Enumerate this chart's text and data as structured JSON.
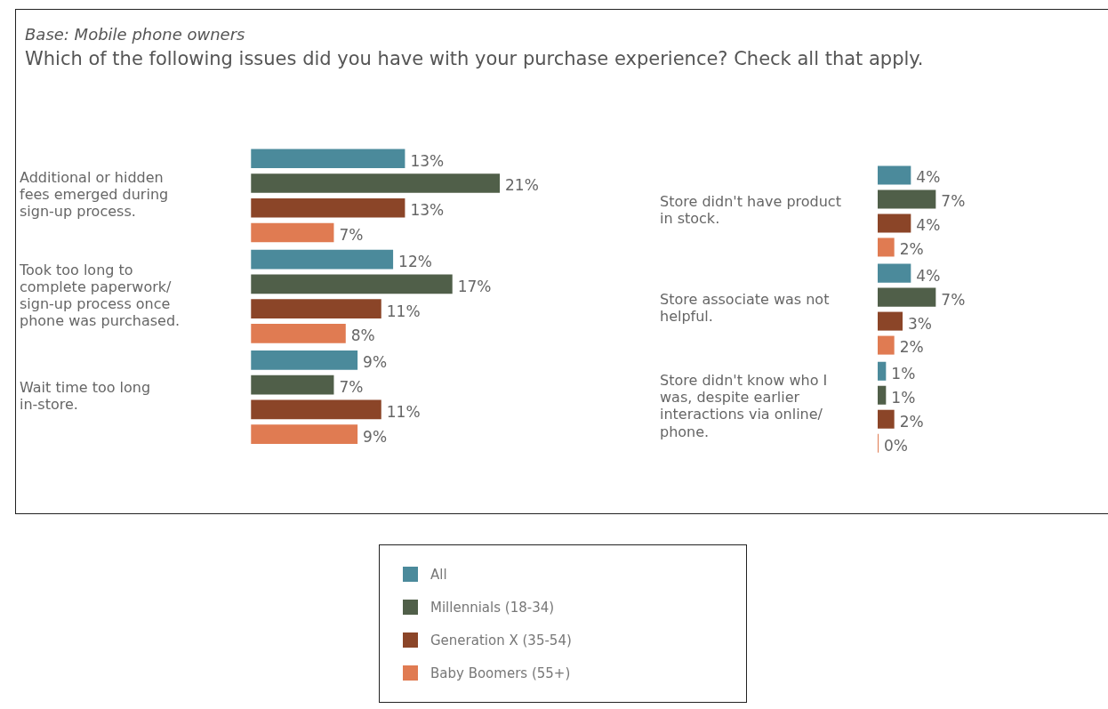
{
  "chart_data": [
    {
      "type": "bar",
      "orientation": "horizontal",
      "subtitle": "Base: Mobile phone owners",
      "title": "Which of the following issues did you have with your purchase experience? Check all that apply.",
      "categories": [
        "Additional or hidden fees emerged during sign-up process.",
        "Took too long to complete paperwork/ sign-up process once phone was purchased.",
        "Wait time too long in-store."
      ],
      "legend": "bottom",
      "tick_labels": "y",
      "grid": false,
      "series": [
        {
          "name": "All",
          "color": "#4b8a9b",
          "values": [
            13,
            12,
            9
          ],
          "value_labels": [
            "13%",
            "12%",
            "9%"
          ]
        },
        {
          "name": "Millennials (18-34)",
          "color": "#505f49",
          "values": [
            21,
            17,
            7
          ],
          "value_labels": [
            "21%",
            "17%",
            "7%"
          ]
        },
        {
          "name": "Generation X (35-54)",
          "color": "#8b4528",
          "values": [
            13,
            11,
            11
          ],
          "value_labels": [
            "13%",
            "11%",
            "11%"
          ]
        },
        {
          "name": "Baby Boomers (55+)",
          "color": "#e07b52",
          "values": [
            7,
            8,
            9
          ],
          "value_labels": [
            "7%",
            "8%",
            "9%"
          ]
        }
      ]
    },
    {
      "type": "bar",
      "orientation": "horizontal",
      "categories": [
        "Store didn't have product in stock.",
        "Store associate was not helpful.",
        "Store didn't know who I was, despite earlier interactions via online/ phone."
      ],
      "tick_labels": "y",
      "grid": false,
      "series": [
        {
          "color": "#4b8a9b",
          "values": [
            4,
            4,
            1
          ],
          "value_labels": [
            "4%",
            "4%",
            "1%"
          ]
        },
        {
          "color": "#505f49",
          "values": [
            7,
            7,
            1
          ],
          "value_labels": [
            "7%",
            "7%",
            "1%"
          ]
        },
        {
          "color": "#8b4528",
          "values": [
            4,
            3,
            2
          ],
          "value_labels": [
            "4%",
            "3%",
            "2%"
          ]
        },
        {
          "color": "#e07b52",
          "values": [
            2,
            2,
            0
          ],
          "value_labels": [
            "2%",
            "2%",
            "0%"
          ]
        }
      ]
    }
  ]
}
